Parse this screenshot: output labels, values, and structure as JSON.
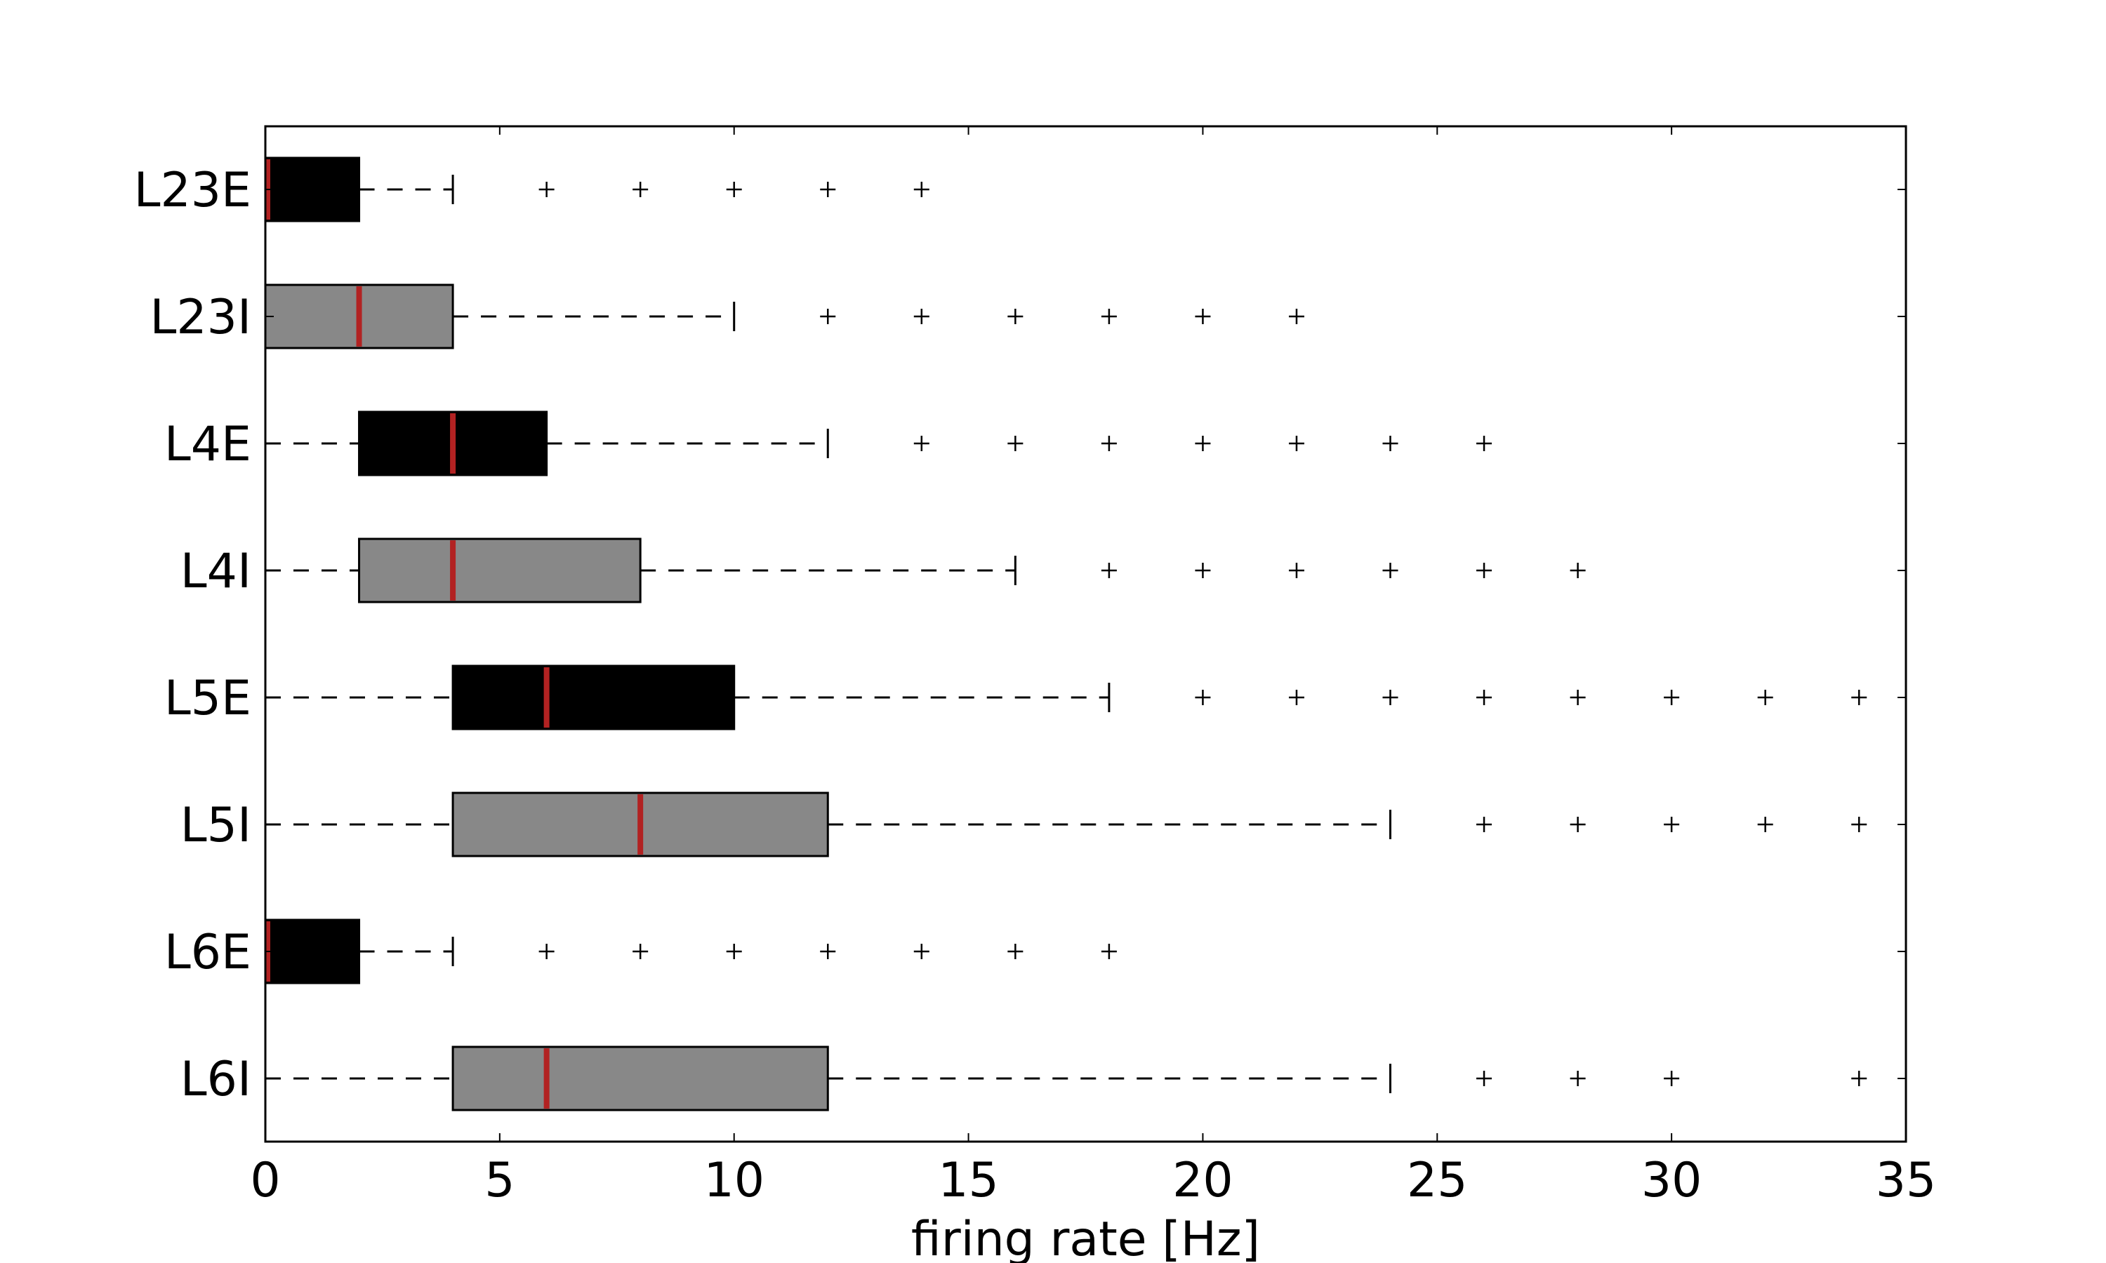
{
  "chart_data": {
    "type": "boxplot",
    "orientation": "horizontal",
    "title": "",
    "xlabel": "firing rate [Hz]",
    "ylabel": "",
    "xlim": [
      0,
      35
    ],
    "xticks": [
      0,
      5,
      10,
      15,
      20,
      25,
      30,
      35
    ],
    "grid": false,
    "legend": "none",
    "median_color": "#b22222",
    "flier_marker": "+",
    "series": [
      {
        "name": "L23E",
        "fill": "#000000",
        "whisker_low": 0,
        "q1": 0,
        "median": 0,
        "q3": 2,
        "whisker_high": 4,
        "fliers": [
          6,
          8,
          10,
          12,
          14
        ]
      },
      {
        "name": "L23I",
        "fill": "#888888",
        "whisker_low": 0,
        "q1": 0,
        "median": 2,
        "q3": 4,
        "whisker_high": 10,
        "fliers": [
          12,
          14,
          16,
          18,
          20,
          22
        ]
      },
      {
        "name": "L4E",
        "fill": "#000000",
        "whisker_low": 0,
        "q1": 2,
        "median": 4,
        "q3": 6,
        "whisker_high": 12,
        "fliers": [
          14,
          16,
          18,
          20,
          22,
          24,
          26
        ]
      },
      {
        "name": "L4I",
        "fill": "#888888",
        "whisker_low": 0,
        "q1": 2,
        "median": 4,
        "q3": 8,
        "whisker_high": 16,
        "fliers": [
          18,
          20,
          22,
          24,
          26,
          28
        ]
      },
      {
        "name": "L5E",
        "fill": "#000000",
        "whisker_low": 0,
        "q1": 4,
        "median": 6,
        "q3": 10,
        "whisker_high": 18,
        "fliers": [
          20,
          22,
          24,
          26,
          28,
          30,
          32,
          34
        ]
      },
      {
        "name": "L5I",
        "fill": "#888888",
        "whisker_low": 0,
        "q1": 4,
        "median": 8,
        "q3": 12,
        "whisker_high": 24,
        "fliers": [
          26,
          28,
          30,
          32,
          34
        ]
      },
      {
        "name": "L6E",
        "fill": "#000000",
        "whisker_low": 0,
        "q1": 0,
        "median": 0,
        "q3": 2,
        "whisker_high": 4,
        "fliers": [
          6,
          8,
          10,
          12,
          14,
          16,
          18
        ]
      },
      {
        "name": "L6I",
        "fill": "#888888",
        "whisker_low": 0,
        "q1": 4,
        "median": 6,
        "q3": 12,
        "whisker_high": 24,
        "fliers": [
          26,
          28,
          30,
          34
        ]
      }
    ]
  }
}
